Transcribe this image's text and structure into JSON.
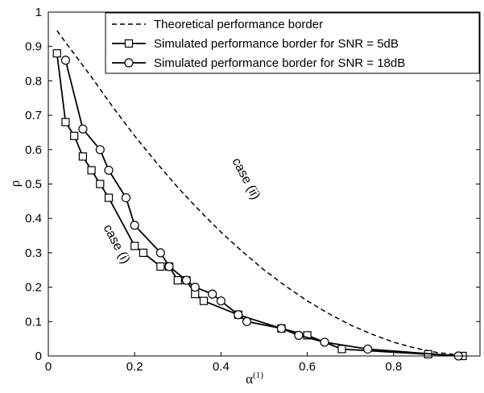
{
  "chart_data": {
    "type": "line",
    "title": "",
    "xlabel": "α",
    "xlabel_sup": "(1)",
    "ylabel": "ρ",
    "xlim": [
      0,
      1
    ],
    "ylim": [
      0,
      1
    ],
    "xticks": [
      0,
      0.2,
      0.4,
      0.6,
      0.8
    ],
    "yticks": [
      0,
      0.1,
      0.2,
      0.3,
      0.4,
      0.5,
      0.6,
      0.7,
      0.8,
      0.9,
      1
    ],
    "grid": false,
    "legend_position": "top-right",
    "series": [
      {
        "name": "Theoretical performance border",
        "style": "dashed",
        "marker": "none",
        "x": [
          0.02,
          0.05,
          0.1,
          0.15,
          0.2,
          0.25,
          0.3,
          0.35,
          0.4,
          0.45,
          0.5,
          0.55,
          0.6,
          0.65,
          0.7,
          0.75,
          0.8,
          0.85,
          0.9,
          0.95
        ],
        "y": [
          0.946,
          0.895,
          0.811,
          0.723,
          0.64,
          0.563,
          0.49,
          0.423,
          0.36,
          0.303,
          0.25,
          0.203,
          0.16,
          0.123,
          0.09,
          0.063,
          0.04,
          0.023,
          0.01,
          0.003
        ]
      },
      {
        "name": "Simulated performance border for SNR = 5dB",
        "style": "solid",
        "marker": "square",
        "x": [
          0.02,
          0.04,
          0.06,
          0.08,
          0.1,
          0.12,
          0.14,
          0.2,
          0.22,
          0.26,
          0.28,
          0.3,
          0.32,
          0.34,
          0.36,
          0.44,
          0.54,
          0.6,
          0.68,
          0.88,
          0.96
        ],
        "y": [
          0.88,
          0.68,
          0.64,
          0.58,
          0.54,
          0.5,
          0.46,
          0.32,
          0.3,
          0.26,
          0.26,
          0.22,
          0.22,
          0.18,
          0.16,
          0.12,
          0.08,
          0.06,
          0.02,
          0.005,
          0.0
        ]
      },
      {
        "name": "Simulated performance border for SNR = 18dB",
        "style": "solid",
        "marker": "circle",
        "x": [
          0.04,
          0.08,
          0.12,
          0.14,
          0.18,
          0.2,
          0.26,
          0.28,
          0.32,
          0.34,
          0.38,
          0.4,
          0.44,
          0.46,
          0.54,
          0.58,
          0.64,
          0.74,
          0.95
        ],
        "y": [
          0.86,
          0.66,
          0.6,
          0.54,
          0.46,
          0.38,
          0.3,
          0.26,
          0.22,
          0.2,
          0.18,
          0.16,
          0.12,
          0.1,
          0.08,
          0.06,
          0.04,
          0.02,
          0.0
        ]
      }
    ],
    "annotations": [
      {
        "text": "case (i)",
        "x": 0.15,
        "y": 0.32,
        "rotation": 62
      },
      {
        "text": "case (ii)",
        "x": 0.45,
        "y": 0.51,
        "rotation": 62
      }
    ]
  }
}
